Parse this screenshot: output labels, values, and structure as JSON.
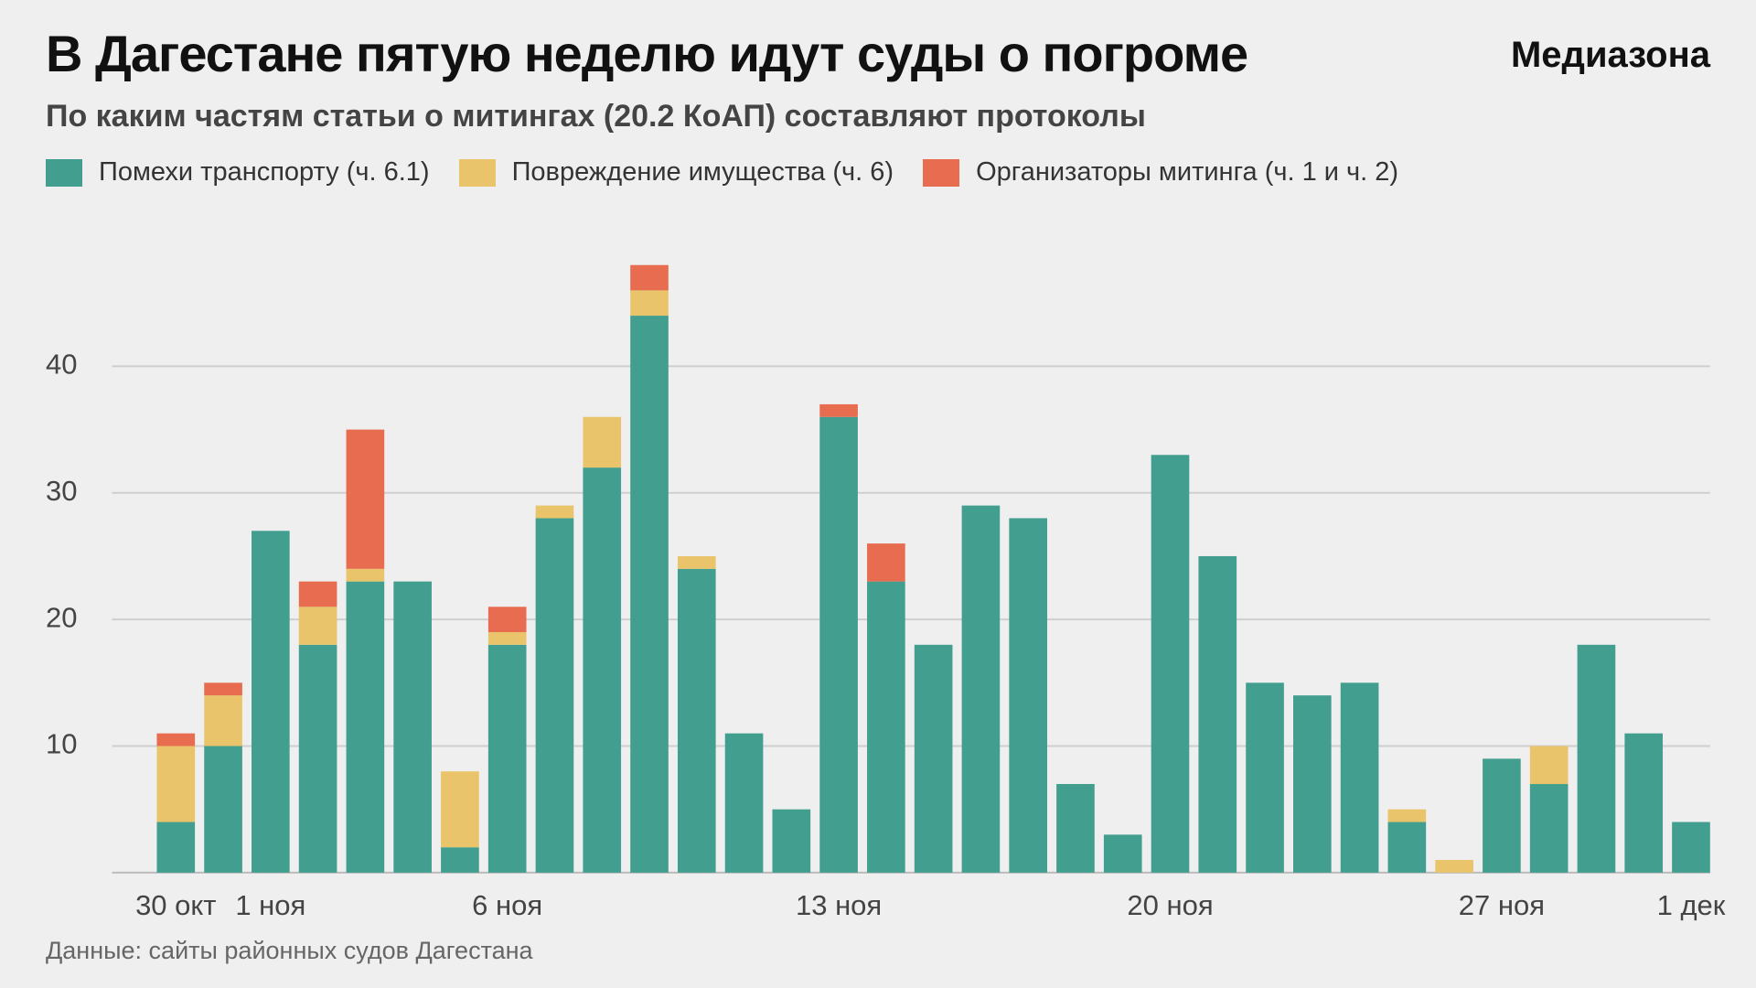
{
  "chart_data": {
    "type": "bar",
    "stacked": true,
    "title": "В Дагестане пятую неделю идут суды о погроме",
    "brand": "Медиазона",
    "subtitle": "По каким частям статьи о митингах (20.2 КоАП) составляют протоколы",
    "source": "Данные: сайты районных судов Дагестана",
    "categories": [
      "30 окт",
      null,
      "1 ноя",
      null,
      null,
      null,
      null,
      "6 ноя",
      null,
      null,
      null,
      null,
      null,
      null,
      "13 ноя",
      null,
      null,
      null,
      null,
      null,
      null,
      "20 ноя",
      null,
      null,
      null,
      null,
      null,
      null,
      "27 ноя",
      null,
      null,
      null,
      "1 дек"
    ],
    "series": [
      {
        "name": "Помехи транспорту (ч. 6.1)",
        "color": "#429e8e",
        "values": [
          4,
          10,
          27,
          18,
          23,
          23,
          2,
          18,
          28,
          32,
          44,
          24,
          11,
          5,
          36,
          23,
          18,
          29,
          28,
          7,
          3,
          33,
          25,
          15,
          14,
          15,
          4,
          0,
          9,
          7,
          18,
          11,
          4
        ]
      },
      {
        "name": "Повреждение имущества (ч. 6)",
        "color": "#e9c46a",
        "values": [
          6,
          4,
          0,
          3,
          1,
          0,
          6,
          1,
          1,
          4,
          2,
          1,
          0,
          0,
          0,
          0,
          0,
          0,
          0,
          0,
          0,
          0,
          0,
          0,
          0,
          0,
          1,
          1,
          0,
          3,
          0,
          0,
          0
        ]
      },
      {
        "name": "Организаторы митинга (ч. 1 и ч. 2)",
        "color": "#e76c50",
        "values": [
          1,
          1,
          0,
          2,
          11,
          0,
          0,
          2,
          0,
          0,
          2,
          0,
          0,
          0,
          1,
          3,
          0,
          0,
          0,
          0,
          0,
          0,
          0,
          0,
          0,
          0,
          0,
          0,
          0,
          0,
          0,
          0,
          0
        ]
      }
    ],
    "ylim": [
      0,
      50
    ],
    "yticks": [
      10,
      20,
      30,
      40
    ],
    "grid": true
  }
}
